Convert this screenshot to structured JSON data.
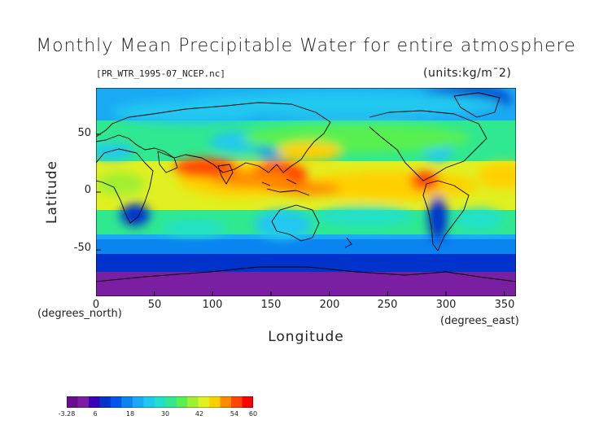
{
  "title": "Monthly Mean Precipitable Water for entire atmosphere",
  "file_label": "[PR_WTR_1995-07_NCEP.nc]",
  "units_label": "(units:kg/m¯2)",
  "axes": {
    "xlabel": "Longitude",
    "ylabel": "Latitude",
    "x_unit": "(degrees_east)",
    "y_unit": "(degrees_north)",
    "x_ticks": [
      "0",
      "50",
      "100",
      "150",
      "200",
      "250",
      "300",
      "350"
    ],
    "y_ticks": [
      "50",
      "0",
      "-50"
    ]
  },
  "colorbar": {
    "labels": [
      "-3.28",
      "6",
      "18",
      "30",
      "42",
      "54",
      "60"
    ],
    "colors": [
      "#6a0d8f",
      "#7b1fa2",
      "#3a00b8",
      "#0033cc",
      "#0055ee",
      "#0a84f0",
      "#1aaaf5",
      "#20c8f0",
      "#20e0c8",
      "#30e890",
      "#58f050",
      "#a0f030",
      "#e0f020",
      "#ffd000",
      "#ff8a00",
      "#ff4500",
      "#ff0000"
    ]
  },
  "chart_data": {
    "type": "heatmap",
    "xlim": [
      0,
      360
    ],
    "ylim": [
      -90,
      90
    ],
    "value_range": [
      -3.28,
      60
    ],
    "month": "1995-07"
  }
}
